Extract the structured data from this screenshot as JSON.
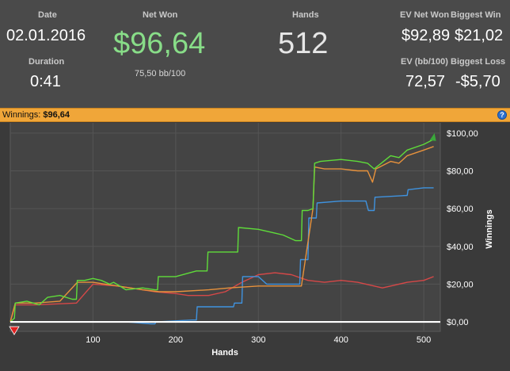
{
  "stats": {
    "date_label": "Date",
    "date_value": "02.01.2016",
    "duration_label": "Duration",
    "duration_value": "0:41",
    "net_won_label": "Net Won",
    "net_won_value": "$96,64",
    "net_won_sub": "75,50 bb/100",
    "hands_label": "Hands",
    "hands_value": "512",
    "ev_net_won_label": "EV Net Won",
    "ev_net_won_value": "$92,89",
    "biggest_win_label": "Biggest Win",
    "biggest_win_value": "$21,02",
    "ev_bb_label": "EV (bb/100)",
    "ev_bb_value": "72,57",
    "biggest_loss_label": "Biggest Loss",
    "biggest_loss_value": "-$5,70"
  },
  "bar": {
    "label": "Winnings:",
    "value": "$96,64",
    "help_icon": "?"
  },
  "chart_data": {
    "type": "line",
    "title": "",
    "xlabel": "Hands",
    "ylabel": "Winnings",
    "xlim": [
      0,
      520
    ],
    "ylim": [
      -5,
      110
    ],
    "x_ticks": [
      100,
      200,
      300,
      400,
      500
    ],
    "x_tick_labels": [
      "100",
      "200",
      "300",
      "400",
      "500"
    ],
    "y_ticks": [
      0,
      20,
      40,
      60,
      80,
      100
    ],
    "y_tick_labels": [
      "$0,00",
      "$20,00",
      "$40,00",
      "$60,00",
      "$80,00",
      "$100,00"
    ],
    "grid": true,
    "colors": {
      "net_won": "#5fdc3a",
      "ev": "#e8923c",
      "showdown": "#3f93e0",
      "non_showdown": "#d64848",
      "zero_line": "#ffffff",
      "end_marker": "#3aa83a",
      "start_marker": "#e02020"
    },
    "series": [
      {
        "key": "net_won",
        "x": [
          0,
          5,
          6,
          20,
          35,
          45,
          60,
          75,
          80,
          81,
          90,
          100,
          110,
          120,
          125,
          140,
          160,
          175,
          178,
          179,
          200,
          225,
          238,
          239,
          265,
          275,
          276,
          300,
          320,
          330,
          345,
          352,
          353,
          360,
          366,
          368,
          375,
          400,
          420,
          432,
          440,
          460,
          470,
          480,
          500,
          512
        ],
        "y": [
          0,
          2,
          10,
          11,
          9,
          13,
          14,
          12,
          12,
          22,
          22,
          23,
          22,
          20,
          21,
          17,
          18,
          17,
          17,
          24,
          24,
          27,
          27,
          37,
          37,
          37,
          50,
          49,
          47,
          46,
          43,
          43,
          59,
          59,
          60,
          84,
          85,
          86,
          85,
          84,
          81,
          88,
          87,
          91,
          94,
          96.64
        ]
      },
      {
        "key": "ev",
        "x": [
          0,
          6,
          30,
          60,
          81,
          100,
          130,
          160,
          180,
          200,
          240,
          265,
          300,
          330,
          352,
          366,
          368,
          380,
          400,
          420,
          432,
          438,
          442,
          460,
          470,
          480,
          500,
          512
        ],
        "y": [
          0,
          10,
          10,
          11,
          21,
          21,
          19,
          17,
          16,
          16,
          17,
          18,
          19,
          19,
          19,
          60,
          82,
          81,
          81,
          80,
          80,
          74,
          81,
          85,
          84,
          88,
          91,
          92.89
        ]
      },
      {
        "key": "showdown",
        "x": [
          0,
          130,
          140,
          170,
          175,
          176,
          220,
          225,
          226,
          265,
          270,
          271,
          280,
          281,
          300,
          310,
          311,
          345,
          350,
          351,
          360,
          361,
          370,
          371,
          400,
          430,
          433,
          435,
          440,
          441,
          480,
          481,
          500,
          512
        ],
        "y": [
          0,
          0,
          0,
          -1,
          -1,
          0,
          1,
          1,
          8,
          8,
          8,
          10,
          10,
          24,
          24,
          20,
          20,
          20,
          20,
          33,
          33,
          55,
          55,
          63,
          64,
          64,
          59,
          59,
          59,
          66,
          67,
          70,
          71,
          71
        ]
      },
      {
        "key": "non_showdown",
        "x": [
          0,
          6,
          30,
          80,
          100,
          130,
          160,
          175,
          200,
          215,
          240,
          260,
          280,
          300,
          320,
          340,
          360,
          380,
          400,
          420,
          440,
          450,
          470,
          480,
          500,
          512
        ],
        "y": [
          0,
          9,
          9,
          10,
          20,
          19,
          17,
          16,
          15,
          14,
          14,
          16,
          21,
          25,
          26,
          25,
          22,
          21,
          22,
          21,
          19,
          18,
          20,
          21,
          22,
          24
        ]
      }
    ]
  }
}
